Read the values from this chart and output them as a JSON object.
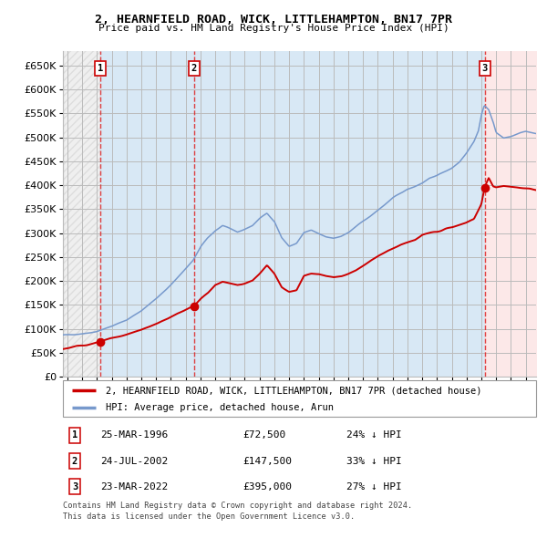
{
  "title": "2, HEARNFIELD ROAD, WICK, LITTLEHAMPTON, BN17 7PR",
  "subtitle": "Price paid vs. HM Land Registry's House Price Index (HPI)",
  "legend_line1": "2, HEARNFIELD ROAD, WICK, LITTLEHAMPTON, BN17 7PR (detached house)",
  "legend_line2": "HPI: Average price, detached house, Arun",
  "footer1": "Contains HM Land Registry data © Crown copyright and database right 2024.",
  "footer2": "This data is licensed under the Open Government Licence v3.0.",
  "transactions": [
    {
      "num": 1,
      "date": "25-MAR-1996",
      "price": 72500,
      "year": 1996.22,
      "hpi_pct": "24% ↓ HPI"
    },
    {
      "num": 2,
      "date": "24-JUL-2002",
      "price": 147500,
      "year": 2002.56,
      "hpi_pct": "33% ↓ HPI"
    },
    {
      "num": 3,
      "date": "23-MAR-2022",
      "price": 395000,
      "year": 2022.22,
      "hpi_pct": "27% ↓ HPI"
    }
  ],
  "vline_color": "#dd2222",
  "hpi_color": "#7799cc",
  "price_color": "#cc0000",
  "dot_color": "#cc0000",
  "bg_shaded_color": "#d8e8f5",
  "bg_pink_color": "#fce8e8",
  "grid_color": "#bbbbbb",
  "ylim": [
    0,
    680000
  ],
  "ytick_step": 50000,
  "xmin": 1993.7,
  "xmax": 2025.7,
  "fig_width": 6.0,
  "fig_height": 5.9,
  "dpi": 100,
  "hpi_anchors": [
    [
      1993.7,
      86000
    ],
    [
      1994.5,
      89000
    ],
    [
      1995.5,
      92000
    ],
    [
      1996.0,
      95000
    ],
    [
      1997.0,
      105000
    ],
    [
      1998.0,
      118000
    ],
    [
      1999.0,
      138000
    ],
    [
      2000.0,
      162000
    ],
    [
      2001.0,
      192000
    ],
    [
      2002.0,
      225000
    ],
    [
      2002.5,
      242000
    ],
    [
      2003.0,
      270000
    ],
    [
      2003.5,
      290000
    ],
    [
      2004.0,
      305000
    ],
    [
      2004.5,
      315000
    ],
    [
      2005.0,
      308000
    ],
    [
      2005.5,
      302000
    ],
    [
      2006.0,
      308000
    ],
    [
      2006.5,
      315000
    ],
    [
      2007.0,
      330000
    ],
    [
      2007.5,
      342000
    ],
    [
      2008.0,
      325000
    ],
    [
      2008.5,
      290000
    ],
    [
      2009.0,
      272000
    ],
    [
      2009.5,
      278000
    ],
    [
      2010.0,
      300000
    ],
    [
      2010.5,
      305000
    ],
    [
      2011.0,
      298000
    ],
    [
      2011.5,
      292000
    ],
    [
      2012.0,
      290000
    ],
    [
      2012.5,
      293000
    ],
    [
      2013.0,
      300000
    ],
    [
      2013.5,
      312000
    ],
    [
      2014.0,
      325000
    ],
    [
      2014.5,
      335000
    ],
    [
      2015.0,
      348000
    ],
    [
      2015.5,
      360000
    ],
    [
      2016.0,
      372000
    ],
    [
      2016.5,
      382000
    ],
    [
      2017.0,
      392000
    ],
    [
      2017.5,
      398000
    ],
    [
      2018.0,
      405000
    ],
    [
      2018.5,
      415000
    ],
    [
      2019.0,
      420000
    ],
    [
      2019.5,
      428000
    ],
    [
      2020.0,
      435000
    ],
    [
      2020.5,
      448000
    ],
    [
      2021.0,
      468000
    ],
    [
      2021.5,
      492000
    ],
    [
      2021.8,
      515000
    ],
    [
      2022.0,
      548000
    ],
    [
      2022.2,
      568000
    ],
    [
      2022.5,
      558000
    ],
    [
      2022.8,
      532000
    ],
    [
      2023.0,
      510000
    ],
    [
      2023.5,
      498000
    ],
    [
      2024.0,
      502000
    ],
    [
      2024.5,
      508000
    ],
    [
      2025.0,
      512000
    ],
    [
      2025.7,
      508000
    ]
  ],
  "price_anchors": [
    [
      1993.7,
      58000
    ],
    [
      1995.0,
      65000
    ],
    [
      1996.22,
      72500
    ],
    [
      1997.0,
      80000
    ],
    [
      1998.0,
      88000
    ],
    [
      1999.0,
      98000
    ],
    [
      2000.0,
      110000
    ],
    [
      2001.0,
      124000
    ],
    [
      2002.0,
      140000
    ],
    [
      2002.56,
      147500
    ],
    [
      2003.0,
      162000
    ],
    [
      2003.5,
      175000
    ],
    [
      2004.0,
      192000
    ],
    [
      2004.5,
      198000
    ],
    [
      2005.0,
      195000
    ],
    [
      2005.5,
      192000
    ],
    [
      2006.0,
      195000
    ],
    [
      2006.5,
      200000
    ],
    [
      2007.0,
      215000
    ],
    [
      2007.5,
      232000
    ],
    [
      2008.0,
      215000
    ],
    [
      2008.5,
      188000
    ],
    [
      2009.0,
      178000
    ],
    [
      2009.5,
      180000
    ],
    [
      2010.0,
      210000
    ],
    [
      2010.5,
      215000
    ],
    [
      2011.0,
      215000
    ],
    [
      2011.5,
      210000
    ],
    [
      2012.0,
      208000
    ],
    [
      2012.5,
      210000
    ],
    [
      2013.0,
      215000
    ],
    [
      2013.5,
      222000
    ],
    [
      2014.0,
      232000
    ],
    [
      2014.5,
      242000
    ],
    [
      2015.0,
      252000
    ],
    [
      2015.5,
      260000
    ],
    [
      2016.0,
      268000
    ],
    [
      2016.5,
      275000
    ],
    [
      2017.0,
      280000
    ],
    [
      2017.5,
      285000
    ],
    [
      2018.0,
      296000
    ],
    [
      2018.5,
      300000
    ],
    [
      2019.0,
      302000
    ],
    [
      2019.5,
      308000
    ],
    [
      2020.0,
      312000
    ],
    [
      2020.5,
      316000
    ],
    [
      2021.0,
      322000
    ],
    [
      2021.5,
      330000
    ],
    [
      2022.0,
      360000
    ],
    [
      2022.22,
      395000
    ],
    [
      2022.5,
      415000
    ],
    [
      2022.8,
      398000
    ],
    [
      2023.0,
      396000
    ],
    [
      2023.5,
      398000
    ],
    [
      2024.0,
      396000
    ],
    [
      2024.5,
      394000
    ],
    [
      2025.0,
      393000
    ],
    [
      2025.7,
      390000
    ]
  ]
}
